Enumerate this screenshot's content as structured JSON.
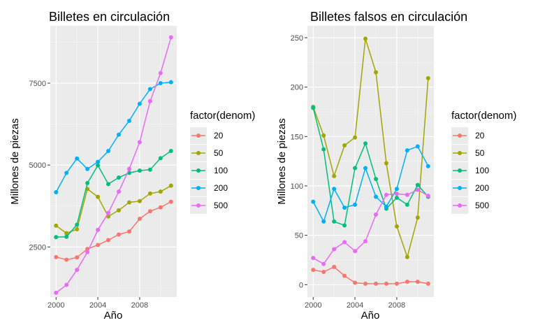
{
  "chart_data": [
    {
      "type": "line",
      "title": "Billetes en circulación",
      "xlabel": "Año",
      "ylabel": "Millones de piezas",
      "x": [
        2000,
        2001,
        2002,
        2003,
        2004,
        2005,
        2006,
        2007,
        2008,
        2009,
        2010,
        2011
      ],
      "xlim": [
        1999.45,
        2011.55
      ],
      "ylim": [
        970,
        9250
      ],
      "xticks": [
        2000,
        2004,
        2008
      ],
      "yticks": [
        2500,
        5000,
        7500
      ],
      "grid": true,
      "legend_title": "factor(denom)",
      "legend_position": "right",
      "series": [
        {
          "name": "20",
          "color": "#F8766D",
          "values": [
            2190,
            2110,
            2180,
            2440,
            2560,
            2710,
            2880,
            2970,
            3360,
            3590,
            3710,
            3880
          ]
        },
        {
          "name": "50",
          "color": "#A3A500",
          "values": [
            3150,
            2920,
            3040,
            4270,
            4030,
            3430,
            3620,
            3860,
            3900,
            4130,
            4190,
            4370
          ]
        },
        {
          "name": "100",
          "color": "#00BF7D",
          "values": [
            2800,
            2810,
            3180,
            4450,
            4990,
            4420,
            4620,
            4760,
            4830,
            4860,
            5210,
            5430
          ]
        },
        {
          "name": "200",
          "color": "#00B0F6",
          "values": [
            4170,
            4760,
            5200,
            4880,
            5100,
            5430,
            5930,
            6350,
            6870,
            7320,
            7500,
            7530
          ]
        },
        {
          "name": "500",
          "color": "#E76BF3",
          "values": [
            1100,
            1340,
            1800,
            2340,
            3020,
            3540,
            4190,
            4880,
            5700,
            6950,
            7810,
            8900
          ]
        }
      ]
    },
    {
      "type": "line",
      "title": "Billetes falsos en circulación",
      "xlabel": "Año",
      "ylabel": "Millones de piezas",
      "x": [
        2000,
        2001,
        2002,
        2003,
        2004,
        2005,
        2006,
        2007,
        2008,
        2009,
        2010,
        2011
      ],
      "xlim": [
        1999.45,
        2011.55
      ],
      "ylim": [
        -12.5,
        262
      ],
      "xticks": [
        2000,
        2004,
        2008
      ],
      "yticks": [
        0,
        50,
        100,
        150,
        200,
        250
      ],
      "grid": true,
      "legend_title": "factor(denom)",
      "legend_position": "right",
      "series": [
        {
          "name": "20",
          "color": "#F8766D",
          "values": [
            15,
            13,
            18,
            9,
            2,
            1,
            1,
            1,
            1,
            3,
            3,
            1
          ]
        },
        {
          "name": "50",
          "color": "#A3A500",
          "values": [
            180,
            151,
            110,
            141,
            149,
            249,
            215,
            123,
            59,
            28,
            68,
            209
          ]
        },
        {
          "name": "100",
          "color": "#00BF7D",
          "values": [
            179,
            137,
            64,
            60,
            118,
            143,
            107,
            77,
            88,
            81,
            101,
            89
          ]
        },
        {
          "name": "200",
          "color": "#00B0F6",
          "values": [
            84,
            64,
            97,
            78,
            81,
            118,
            89,
            79,
            97,
            136,
            140,
            120
          ]
        },
        {
          "name": "500",
          "color": "#E76BF3",
          "values": [
            27,
            21,
            36,
            43,
            34,
            44,
            71,
            91,
            92,
            91,
            96,
            90
          ]
        }
      ]
    }
  ]
}
